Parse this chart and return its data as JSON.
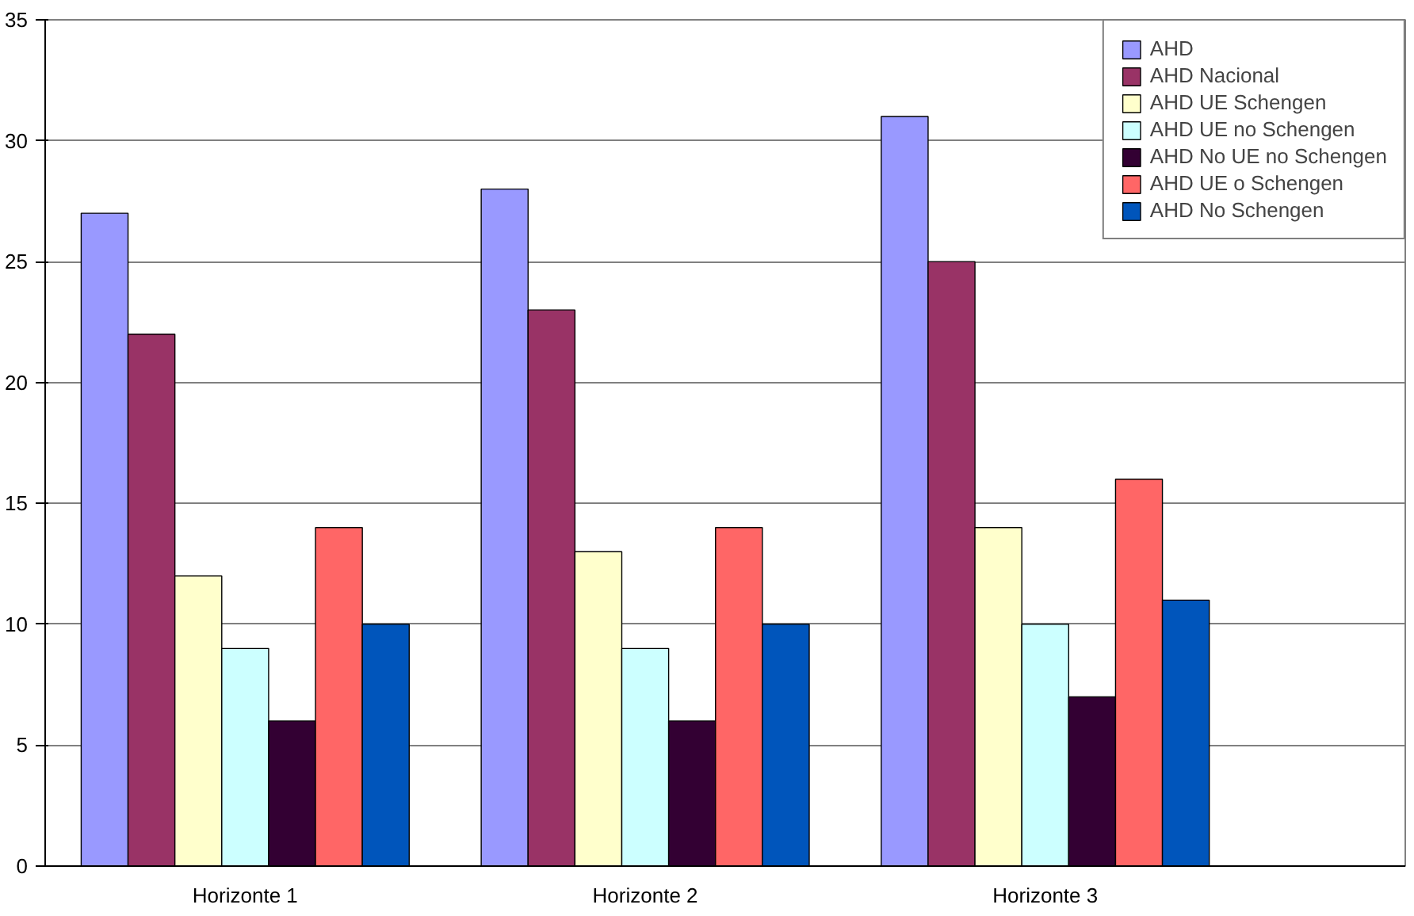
{
  "chart_data": {
    "type": "bar",
    "categories": [
      "Horizonte 1",
      "Horizonte 2",
      "Horizonte 3"
    ],
    "series": [
      {
        "name": "AHD",
        "color": "#9999ff",
        "values": [
          27,
          28,
          31
        ]
      },
      {
        "name": "AHD Nacional",
        "color": "#993366",
        "values": [
          22,
          23,
          25
        ]
      },
      {
        "name": "AHD UE Schengen",
        "color": "#ffffcc",
        "values": [
          12,
          13,
          14
        ]
      },
      {
        "name": "AHD UE no Schengen",
        "color": "#ccffff",
        "values": [
          9,
          9,
          10
        ]
      },
      {
        "name": "AHD No UE no Schengen",
        "color": "#330033",
        "values": [
          6,
          6,
          7
        ]
      },
      {
        "name": "AHD UE o Schengen",
        "color": "#ff6666",
        "values": [
          14,
          14,
          16
        ]
      },
      {
        "name": "AHD No Schengen",
        "color": "#0055bb",
        "values": [
          10,
          10,
          11
        ]
      }
    ],
    "ylim": [
      0,
      35
    ],
    "yticks": [
      0,
      5,
      10,
      15,
      20,
      25,
      30,
      35
    ],
    "grid": "y",
    "legend": "top right"
  }
}
